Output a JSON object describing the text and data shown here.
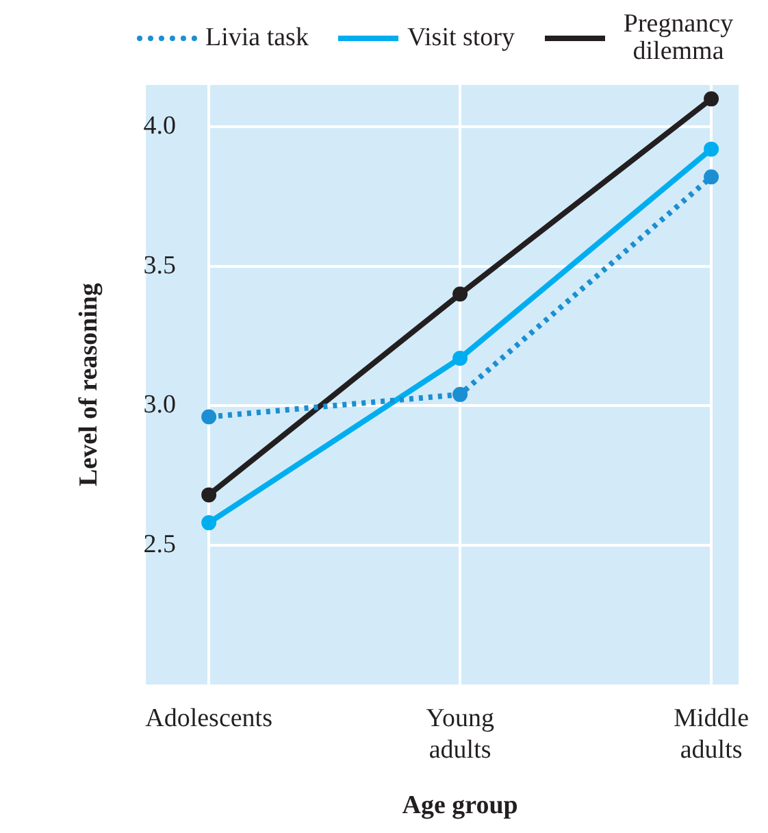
{
  "chart_data": {
    "type": "line",
    "xlabel": "Age group",
    "ylabel": "Level of reasoning",
    "categories": [
      "Adolescents",
      "Young adults",
      "Middle adults"
    ],
    "series": [
      {
        "name": "Livia task",
        "color": "#1b8fd2",
        "values": [
          2.96,
          3.04,
          3.82
        ],
        "line_style": "dotted"
      },
      {
        "name": "Visit story",
        "color": "#00aeef",
        "values": [
          2.58,
          3.17,
          3.92
        ],
        "line_style": "solid"
      },
      {
        "name": "Pregnancy dilemma",
        "color": "#231f20",
        "values": [
          2.68,
          3.4,
          4.1
        ],
        "line_style": "solid"
      }
    ],
    "ylim": [
      2,
      4.15
    ],
    "yticks": [
      2.5,
      {
        "value": 3,
        "label": "3.0"
      },
      3.5,
      {
        "value": 4,
        "label": "4.0"
      }
    ],
    "grid": true,
    "legend": "top",
    "marker": "circle"
  }
}
